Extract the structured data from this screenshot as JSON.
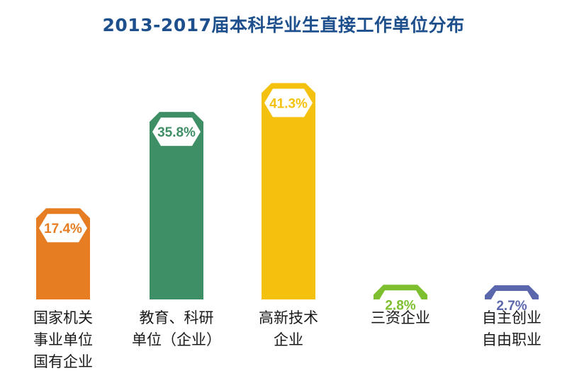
{
  "title": "2013-2017届本科毕业生直接工作单位分布",
  "chart_data": {
    "type": "bar",
    "title": "2013-2017届本科毕业生直接工作单位分布",
    "categories": [
      "国家机关\n事业单位\n国有企业",
      "教育、科研\n单位（企业）",
      "高新技术\n企业",
      "三资企业",
      "自主创业\n自由职业"
    ],
    "values": [
      17.4,
      35.8,
      41.3,
      2.8,
      2.7
    ],
    "value_labels": [
      "17.4%",
      "35.8%",
      "41.3%",
      "2.8%",
      "2.7%"
    ],
    "unit": "%",
    "colors": [
      "#e67d22",
      "#3f8f66",
      "#f4c10f",
      "#7dbf2f",
      "#5a67ad"
    ],
    "ylim": [
      0,
      45
    ],
    "grid": false,
    "legend": "none"
  }
}
